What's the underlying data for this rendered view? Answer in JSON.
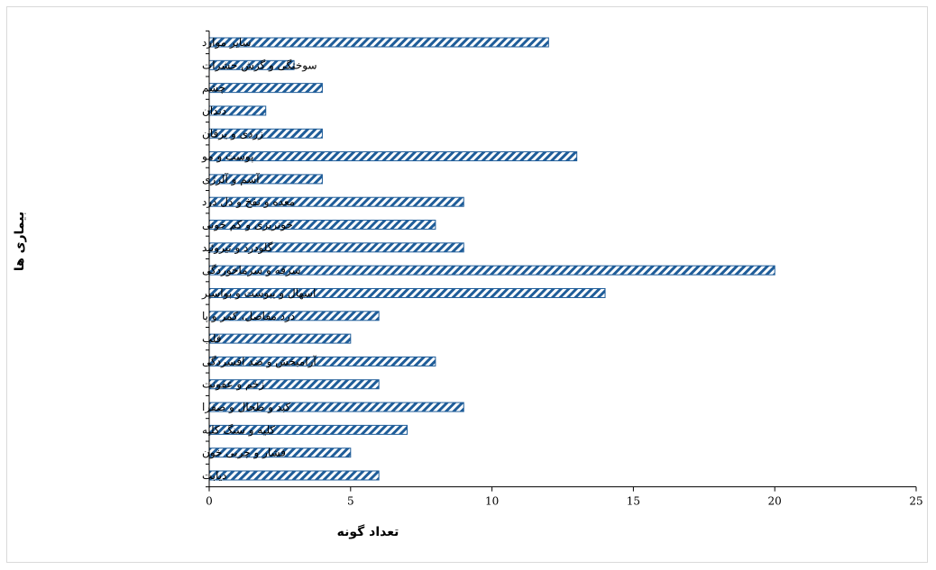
{
  "chart_data": {
    "type": "bar",
    "orientation": "horizontal",
    "categories": [
      "دیابت",
      "فشار و چربی خون",
      "کلیه و سنگ کلیه",
      "کبد و طحال و صفرا",
      "زخم و عفونت",
      "آرامبخش و ضد افسردگی",
      "قلب",
      "درد مفاصل، کمر و پا",
      "اسهال و یبوست و بواسیر",
      "سرفه و سرماخوردگی",
      "گلودرد و تیروئید",
      "خونریزی و کم خونی",
      "معده و نفخ و دل درد",
      "آسم و آلرژی",
      "پوست و مو",
      "زردی و یرقان",
      "دندان",
      "چشم",
      "سوختگی و گزش حشرات",
      "سایر موارد"
    ],
    "values": [
      6,
      5,
      7,
      9,
      6,
      8,
      5,
      6,
      14,
      20,
      9,
      8,
      9,
      4,
      13,
      4,
      2,
      4,
      3,
      12
    ],
    "xlabel": "تعداد گونه",
    "ylabel": "بیماری ها",
    "xlim": [
      0,
      25
    ],
    "xticks": [
      "0",
      "5",
      "10",
      "15",
      "20",
      "25"
    ],
    "xtick_values": [
      0,
      5,
      10,
      15,
      20,
      25
    ],
    "grid": false,
    "legend": "none",
    "colors": {
      "bar_stroke": "#1f5d99",
      "bar_hatch": "#1f5d99",
      "bar_fill": "#ffffff",
      "axis": "#000000"
    }
  }
}
